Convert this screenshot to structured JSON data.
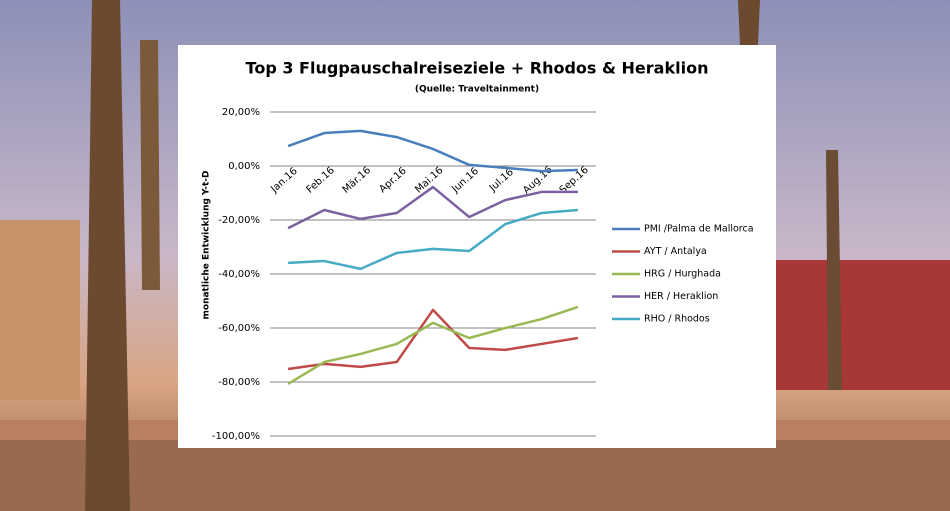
{
  "chart_data": {
    "type": "line",
    "title": "Top 3 Flugpauschalreiseziele + Rhodos & Heraklion",
    "subtitle": "(Quelle: Traveltainment)",
    "y_label": "monatliche Entwicklung  Y-t-D",
    "categories": [
      "Jan.16",
      "Feb.16",
      "Mär.16",
      "Apr.16",
      "Mai.16",
      "Jun.16",
      "Jul.16",
      "Aug.16",
      "Sep.16"
    ],
    "ylim": [
      -100,
      20
    ],
    "yticks": [
      {
        "value": 20,
        "label": "20,00%"
      },
      {
        "value": 0,
        "label": "0,00%"
      },
      {
        "value": -20,
        "label": "-20,00%"
      },
      {
        "value": -40,
        "label": "-40,00%"
      },
      {
        "value": -60,
        "label": "-60,00%"
      },
      {
        "value": -80,
        "label": "-80,00%"
      },
      {
        "value": -100,
        "label": "-100,00%"
      }
    ],
    "grid": true,
    "legend": "right",
    "series": [
      {
        "name": "PMI /Palma de Mallorca",
        "color": "#4a7ebb",
        "values": [
          7.4,
          12.2,
          13,
          10.7,
          6.3,
          0.4,
          -0.7,
          -1.9,
          -1.5
        ]
      },
      {
        "name": "AYT / Antalya",
        "color": "#be4b48",
        "values": [
          -75.2,
          -73.3,
          -74.4,
          -72.6,
          -53.3,
          -67.4,
          -68.1,
          -65.9,
          -63.7
        ]
      },
      {
        "name": "HRG / Hurghada",
        "color": "#98b954",
        "values": [
          -80.7,
          -72.6,
          -69.6,
          -65.9,
          -58.1,
          -63.7,
          -60,
          -56.7,
          -52.2
        ]
      },
      {
        "name": "HER / Heraklion",
        "color": "#7d60a0",
        "values": [
          -23,
          -16.3,
          -19.6,
          -17.4,
          -7.8,
          -18.9,
          -12.6,
          -9.6,
          -9.6
        ]
      },
      {
        "name": "RHO / Rhodos",
        "color": "#46aac5",
        "values": [
          -35.9,
          -35.2,
          -38.1,
          -32.2,
          -30.7,
          -31.5,
          -21.5,
          -17.4,
          -16.3
        ]
      }
    ]
  }
}
